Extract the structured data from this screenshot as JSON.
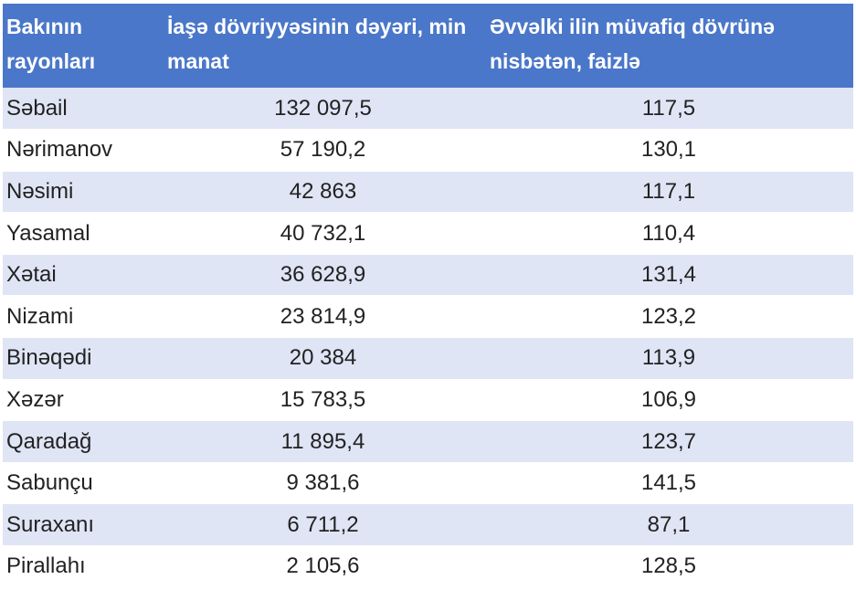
{
  "table": {
    "headers": [
      "Bakının rayonları",
      "İaşə dövriyyəsinin dəyəri, min manat",
      "Əvvəlki ilin müvafiq dövrünə nisbətən, faizlə"
    ],
    "rows": [
      {
        "region": "Səbail",
        "value": "132 097,5",
        "percent": "117,5"
      },
      {
        "region": "Nərimanov",
        "value": "57 190,2",
        "percent": "130,1"
      },
      {
        "region": "Nəsimi",
        "value": "42 863",
        "percent": "117,1"
      },
      {
        "region": "Yasamal",
        "value": "40 732,1",
        "percent": "110,4"
      },
      {
        "region": "Xətai",
        "value": "36 628,9",
        "percent": "131,4"
      },
      {
        "region": "Nizami",
        "value": "23 814,9",
        "percent": "123,2"
      },
      {
        "region": "Binəqədi",
        "value": "20 384",
        "percent": "113,9"
      },
      {
        "region": "Xəzər",
        "value": "15 783,5",
        "percent": "106,9"
      },
      {
        "region": "Qaradağ",
        "value": "11 895,4",
        "percent": "123,7"
      },
      {
        "region": "Sabunçu",
        "value": "9 381,6",
        "percent": "141,5"
      },
      {
        "region": "Suraxanı",
        "value": "6 711,2",
        "percent": "87,1"
      },
      {
        "region": "Pirallahı",
        "value": "2 105,6",
        "percent": "128,5"
      }
    ]
  },
  "colors": {
    "header_bg": "#4a77c9",
    "header_text": "#ffffff",
    "stripe": "#dfe5f5",
    "row_bg": "#ffffff"
  }
}
